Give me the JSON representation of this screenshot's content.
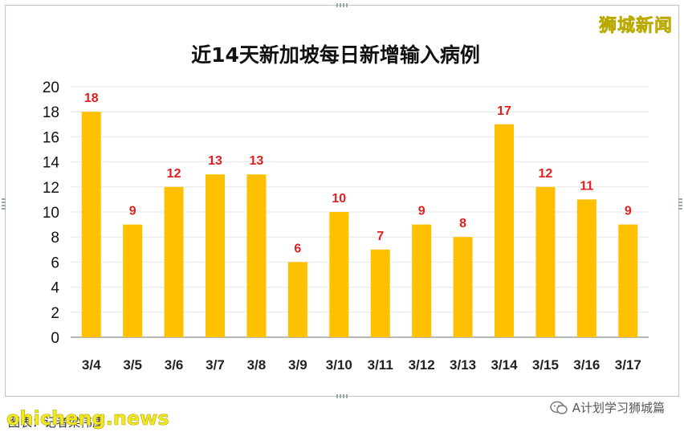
{
  "chart_data": {
    "type": "bar",
    "title": "近14天新加坡每日新增输入病例",
    "categories": [
      "3/4",
      "3/5",
      "3/6",
      "3/7",
      "3/8",
      "3/9",
      "3/10",
      "3/11",
      "3/12",
      "3/13",
      "3/14",
      "3/15",
      "3/16",
      "3/17"
    ],
    "values": [
      18,
      9,
      12,
      13,
      13,
      6,
      10,
      7,
      9,
      8,
      17,
      12,
      11,
      9
    ],
    "ylim": [
      0,
      20
    ],
    "yticks": [
      0,
      2,
      4,
      6,
      8,
      10,
      12,
      14,
      16,
      18,
      20
    ],
    "grid": true,
    "bar_color": "#ffc000",
    "label_color": "#e02020",
    "legend": "none"
  },
  "watermark_top": "狮城新闻",
  "watermark_bottom": "ohicheng.news",
  "source_text": "图表：记者梁伟康",
  "account_name": "A计划学习狮城篇",
  "account_icon": "wechat-icon"
}
